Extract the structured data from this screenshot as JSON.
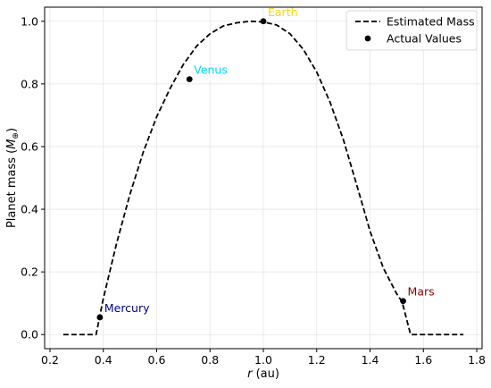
{
  "chart_data": {
    "type": "line",
    "xlabel": {
      "var": "r",
      "unit": " (au)"
    },
    "ylabel": {
      "prefix": "Planet mass (",
      "symbol": "M",
      "sub": "⊕",
      "suffix": ")"
    },
    "xlim": [
      0.18,
      1.82
    ],
    "ylim": [
      -0.045,
      1.045
    ],
    "xticks": [
      0.2,
      0.4,
      0.6,
      0.8,
      1.0,
      1.2,
      1.4,
      1.6,
      1.8
    ],
    "yticks": [
      0.0,
      0.2,
      0.4,
      0.6,
      0.8,
      1.0
    ],
    "grid": true,
    "legend": {
      "position": "top-right",
      "entries": [
        "Estimated Mass",
        "Actual Values"
      ]
    },
    "line_series": {
      "name": "Estimated Mass",
      "color": "#000000",
      "style": "dashed",
      "x": [
        0.25,
        0.373,
        0.4,
        0.45,
        0.5,
        0.55,
        0.6,
        0.65,
        0.7,
        0.75,
        0.8,
        0.85,
        0.9,
        0.95,
        1.0,
        1.05,
        1.1,
        1.15,
        1.2,
        1.25,
        1.3,
        1.35,
        1.4,
        1.45,
        1.5,
        1.52,
        1.552,
        1.75
      ],
      "y": [
        0.0,
        0.0,
        0.115,
        0.292,
        0.448,
        0.583,
        0.695,
        0.785,
        0.862,
        0.921,
        0.96,
        0.985,
        0.995,
        1.0,
        0.998,
        0.988,
        0.96,
        0.91,
        0.838,
        0.742,
        0.622,
        0.478,
        0.33,
        0.212,
        0.13,
        0.105,
        0.0,
        0.0
      ]
    },
    "points": {
      "name": "Actual Values",
      "color": "#000000",
      "data": [
        {
          "label": "Mercury",
          "x": 0.387,
          "y": 0.055,
          "color": "#00008b"
        },
        {
          "label": "Venus",
          "x": 0.723,
          "y": 0.815,
          "color": "#00d5ff"
        },
        {
          "label": "Earth",
          "x": 1.0,
          "y": 1.0,
          "color": "#ffd700"
        },
        {
          "label": "Mars",
          "x": 1.524,
          "y": 0.107,
          "color": "#8b0000"
        }
      ]
    }
  }
}
